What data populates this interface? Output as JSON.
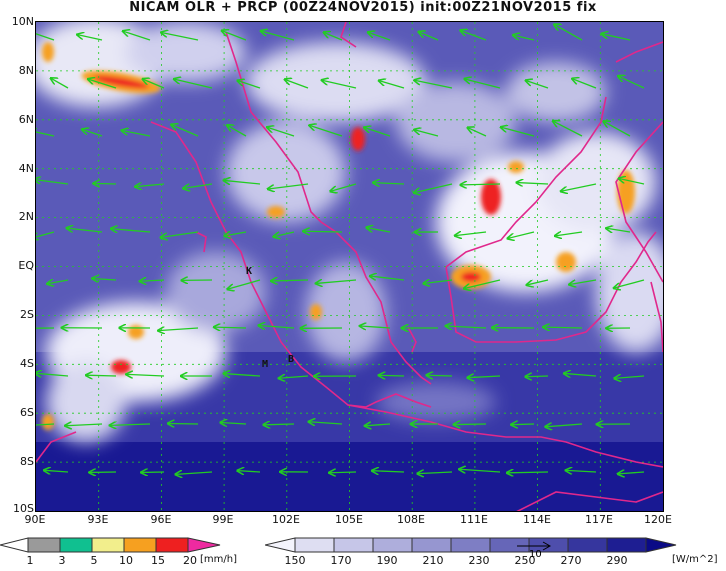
{
  "title": "NICAM OLR + PRCP (00Z24NOV2015) init:00Z21NOV2015 fix",
  "map": {
    "lon_labels": [
      "90E",
      "93E",
      "96E",
      "99E",
      "102E",
      "105E",
      "108E",
      "111E",
      "114E",
      "117E",
      "120E"
    ],
    "lat_labels": [
      "10N",
      "8N",
      "6N",
      "4N",
      "2N",
      "EQ",
      "2S",
      "4S",
      "6S",
      "8S",
      "10S"
    ],
    "stations": [
      "K",
      "M",
      "B"
    ],
    "coastline_color": "#e0288c",
    "wind_vector_color": "#22cc22",
    "gridline_color": "#22cc22"
  },
  "precip_colorbar": {
    "labels": [
      "1",
      "3",
      "5",
      "10",
      "15",
      "20"
    ],
    "unit": "[mm/h]",
    "colors": [
      "#ffffff",
      "#9a9a9a",
      "#10c090",
      "#f2ee8c",
      "#f6a020",
      "#ee2020",
      "#ee2aa0"
    ]
  },
  "olr_colorbar": {
    "labels": [
      "150",
      "170",
      "190",
      "210",
      "230",
      "250",
      "270",
      "290"
    ],
    "unit": "[W/m^2]",
    "reference_vector_label": "10",
    "colors": [
      "#f4f4fc",
      "#dedef2",
      "#c6c6e8",
      "#aeaedc",
      "#9696d0",
      "#7e7ec4",
      "#6666b8",
      "#4e4eac",
      "#36369e",
      "#1e1e92",
      "#0a0a86"
    ]
  }
}
